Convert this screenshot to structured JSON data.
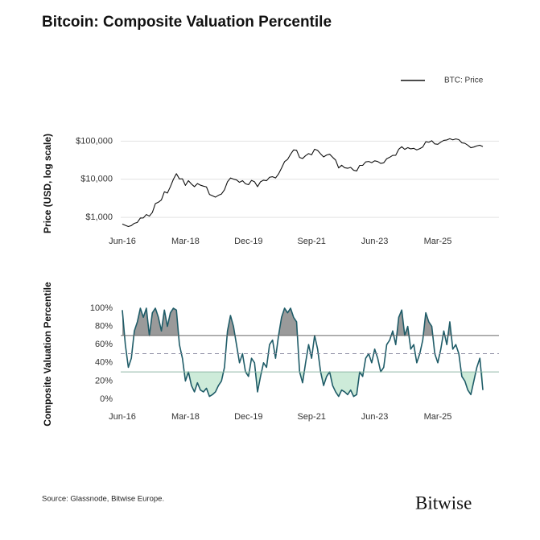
{
  "title": "Bitcoin: Composite Valuation Percentile",
  "source": "Source: Glassnode, Bitwise Europe.",
  "logo": "Bitwise",
  "chart_data": [
    {
      "type": "line",
      "ylabel": "Price (USD, log scale)",
      "log": true,
      "grid": true,
      "legend": "top-right",
      "x": [
        "Jun-16",
        "Jul-16",
        "Aug-16",
        "Sep-16",
        "Oct-16",
        "Nov-16",
        "Dec-16",
        "Jan-17",
        "Feb-17",
        "Mar-17",
        "Apr-17",
        "May-17",
        "Jun-17",
        "Jul-17",
        "Aug-17",
        "Sep-17",
        "Oct-17",
        "Nov-17",
        "Dec-17",
        "Jan-18",
        "Feb-18",
        "Mar-18",
        "Apr-18",
        "May-18",
        "Jun-18",
        "Jul-18",
        "Aug-18",
        "Sep-18",
        "Oct-18",
        "Nov-18",
        "Dec-18",
        "Jan-19",
        "Feb-19",
        "Mar-19",
        "Apr-19",
        "May-19",
        "Jun-19",
        "Jul-19",
        "Aug-19",
        "Sep-19",
        "Oct-19",
        "Nov-19",
        "Dec-19",
        "Jan-20",
        "Feb-20",
        "Mar-20",
        "Apr-20",
        "May-20",
        "Jun-20",
        "Jul-20",
        "Aug-20",
        "Sep-20",
        "Oct-20",
        "Nov-20",
        "Dec-20",
        "Jan-21",
        "Feb-21",
        "Mar-21",
        "Apr-21",
        "May-21",
        "Jun-21",
        "Jul-21",
        "Aug-21",
        "Sep-21",
        "Oct-21",
        "Nov-21",
        "Dec-21",
        "Jan-22",
        "Feb-22",
        "Mar-22",
        "Apr-22",
        "May-22",
        "Jun-22",
        "Jul-22",
        "Aug-22",
        "Sep-22",
        "Oct-22",
        "Nov-22",
        "Dec-22",
        "Jan-23",
        "Feb-23",
        "Mar-23",
        "Apr-23",
        "May-23",
        "Jun-23",
        "Jul-23",
        "Aug-23",
        "Sep-23",
        "Oct-23",
        "Nov-23",
        "Dec-23",
        "Jan-24",
        "Feb-24",
        "Mar-24",
        "Apr-24",
        "May-24",
        "Jun-24",
        "Jul-24",
        "Aug-24",
        "Sep-24",
        "Oct-24",
        "Nov-24",
        "Dec-24",
        "Jan-25",
        "Feb-25",
        "Mar-25",
        "Apr-25",
        "May-25",
        "Jun-25",
        "Jul-25",
        "Aug-25",
        "Sep-25",
        "Oct-25",
        "Nov-25",
        "Dec-25",
        "Jan-26",
        "Feb-26",
        "Mar-26",
        "Apr-26",
        "May-26",
        "Jun-26"
      ],
      "xticks": [
        "Jun-16",
        "Mar-18",
        "Dec-19",
        "Sep-21",
        "Jun-23",
        "Mar-25"
      ],
      "ylim": [
        400,
        150000
      ],
      "yticks": [
        {
          "value": 1000,
          "label": "$1,000"
        },
        {
          "value": 10000,
          "label": "$10,000"
        },
        {
          "value": 100000,
          "label": "$100,000"
        }
      ],
      "series": [
        {
          "name": "BTC: Price",
          "color": "#111111",
          "values": [
            670,
            620,
            575,
            610,
            700,
            740,
            960,
            970,
            1190,
            1080,
            1350,
            2300,
            2500,
            2870,
            4700,
            4340,
            6400,
            10000,
            14000,
            10200,
            10300,
            6900,
            9200,
            7500,
            6400,
            7700,
            7000,
            6600,
            6300,
            4000,
            3700,
            3400,
            3800,
            4100,
            5300,
            8600,
            10800,
            10100,
            9600,
            8300,
            9200,
            7600,
            7200,
            9350,
            8600,
            6400,
            8600,
            9450,
            9150,
            11300,
            11650,
            10800,
            13800,
            19700,
            29000,
            33100,
            45200,
            58800,
            57700,
            37300,
            35000,
            41500,
            47100,
            43800,
            61300,
            57000,
            46300,
            38500,
            43200,
            45500,
            37700,
            31800,
            19800,
            23300,
            20050,
            19400,
            20500,
            17200,
            16500,
            23100,
            23100,
            28500,
            29300,
            27200,
            30500,
            29200,
            26000,
            27000,
            34500,
            37700,
            42300,
            42600,
            61200,
            71300,
            60700,
            67500,
            62700,
            64600,
            59000,
            63300,
            70200,
            96400,
            93400,
            102400,
            84400,
            82500,
            94200,
            104600,
            107100,
            115800,
            108200,
            114000,
            109500,
            90400,
            87500,
            78000,
            67000,
            70000,
            75000,
            78000,
            72000
          ]
        }
      ]
    },
    {
      "type": "line",
      "ylabel": "Composite Valuation Percentile",
      "grid": false,
      "x": [
        "Jun-16",
        "Jul-16",
        "Aug-16",
        "Sep-16",
        "Oct-16",
        "Nov-16",
        "Dec-16",
        "Jan-17",
        "Feb-17",
        "Mar-17",
        "Apr-17",
        "May-17",
        "Jun-17",
        "Jul-17",
        "Aug-17",
        "Sep-17",
        "Oct-17",
        "Nov-17",
        "Dec-17",
        "Jan-18",
        "Feb-18",
        "Mar-18",
        "Apr-18",
        "May-18",
        "Jun-18",
        "Jul-18",
        "Aug-18",
        "Sep-18",
        "Oct-18",
        "Nov-18",
        "Dec-18",
        "Jan-19",
        "Feb-19",
        "Mar-19",
        "Apr-19",
        "May-19",
        "Jun-19",
        "Jul-19",
        "Aug-19",
        "Sep-19",
        "Oct-19",
        "Nov-19",
        "Dec-19",
        "Jan-20",
        "Feb-20",
        "Mar-20",
        "Apr-20",
        "May-20",
        "Jun-20",
        "Jul-20",
        "Aug-20",
        "Sep-20",
        "Oct-20",
        "Nov-20",
        "Dec-20",
        "Jan-21",
        "Feb-21",
        "Mar-21",
        "Apr-21",
        "May-21",
        "Jun-21",
        "Jul-21",
        "Aug-21",
        "Sep-21",
        "Oct-21",
        "Nov-21",
        "Dec-21",
        "Jan-22",
        "Feb-22",
        "Mar-22",
        "Apr-22",
        "May-22",
        "Jun-22",
        "Jul-22",
        "Aug-22",
        "Sep-22",
        "Oct-22",
        "Nov-22",
        "Dec-22",
        "Jan-23",
        "Feb-23",
        "Mar-23",
        "Apr-23",
        "May-23",
        "Jun-23",
        "Jul-23",
        "Aug-23",
        "Sep-23",
        "Oct-23",
        "Nov-23",
        "Dec-23",
        "Jan-24",
        "Feb-24",
        "Mar-24",
        "Apr-24",
        "May-24",
        "Jun-24",
        "Jul-24",
        "Aug-24",
        "Sep-24",
        "Oct-24",
        "Nov-24",
        "Dec-24",
        "Jan-25",
        "Feb-25",
        "Mar-25",
        "Apr-25",
        "May-25",
        "Jun-25",
        "Jul-25",
        "Aug-25",
        "Sep-25",
        "Oct-25",
        "Nov-25",
        "Dec-25",
        "Jan-26",
        "Feb-26",
        "Mar-26",
        "Apr-26",
        "May-26",
        "Jun-26"
      ],
      "xticks": [
        "Jun-16",
        "Mar-18",
        "Dec-19",
        "Sep-21",
        "Jun-23",
        "Mar-25"
      ],
      "ylim": [
        0,
        100
      ],
      "yticks": [
        {
          "value": 0,
          "label": "0%"
        },
        {
          "value": 20,
          "label": "20%"
        },
        {
          "value": 40,
          "label": "40%"
        },
        {
          "value": 60,
          "label": "60%"
        },
        {
          "value": 80,
          "label": "80%"
        },
        {
          "value": 100,
          "label": "100%"
        }
      ],
      "upper_band": 70,
      "midline": 50,
      "lower_band": 30,
      "upper_color": "#9a9a9a",
      "lower_color": "#cdebd9",
      "series": [
        {
          "color": "#1f5c68",
          "values": [
            98,
            60,
            35,
            45,
            75,
            85,
            100,
            90,
            100,
            70,
            95,
            100,
            90,
            75,
            98,
            80,
            95,
            100,
            98,
            60,
            45,
            20,
            30,
            15,
            8,
            18,
            10,
            8,
            12,
            3,
            5,
            8,
            15,
            20,
            35,
            75,
            92,
            80,
            60,
            40,
            50,
            30,
            25,
            45,
            40,
            8,
            25,
            40,
            35,
            60,
            65,
            45,
            70,
            90,
            100,
            95,
            100,
            90,
            85,
            30,
            18,
            40,
            60,
            45,
            70,
            55,
            30,
            15,
            25,
            30,
            15,
            8,
            3,
            10,
            8,
            5,
            10,
            3,
            5,
            30,
            25,
            45,
            50,
            40,
            55,
            45,
            30,
            35,
            60,
            65,
            75,
            60,
            90,
            98,
            70,
            80,
            55,
            60,
            40,
            50,
            65,
            95,
            85,
            80,
            50,
            40,
            55,
            75,
            60,
            85,
            55,
            60,
            50,
            25,
            20,
            10,
            5,
            20,
            35,
            45,
            10
          ]
        }
      ]
    }
  ]
}
